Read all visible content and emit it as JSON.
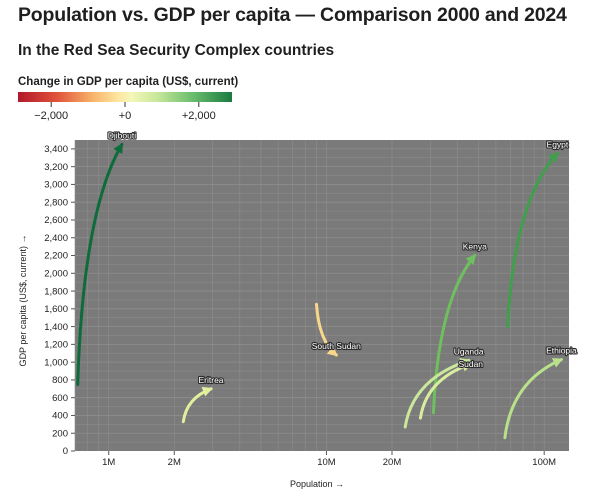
{
  "title": "Population vs. GDP per capita — Comparison 2000 and 2024",
  "subtitle": "In the Red Sea Security Complex countries",
  "colors": {
    "plot_background": "#7a7a7a",
    "gridline": "#8e8e8e",
    "scale_negative": "#b2182b",
    "scale_zero": "#fff4b0",
    "scale_positive": "#1a7a40"
  },
  "legend": {
    "title": "Change in GDP per capita (US$, current)",
    "ticks": [
      {
        "value": -2000,
        "label": "−2,000"
      },
      {
        "value": 0,
        "label": "+0"
      },
      {
        "value": 2000,
        "label": "+2,000"
      }
    ],
    "range": [
      -2900,
      2900
    ]
  },
  "chart_data": {
    "type": "scatter",
    "xlabel": "Population →",
    "ylabel": "GDP per capita (US$, current) →",
    "x_scale": "log",
    "xlim": [
      700000,
      130000000
    ],
    "ylim": [
      0,
      3500
    ],
    "grid": true,
    "xticks": [
      {
        "value": 1000000,
        "label": "1M"
      },
      {
        "value": 2000000,
        "label": "2M"
      },
      {
        "value": 10000000,
        "label": "10M"
      },
      {
        "value": 20000000,
        "label": "20M"
      },
      {
        "value": 100000000,
        "label": "100M"
      }
    ],
    "yticks": [
      0,
      200,
      400,
      600,
      800,
      1000,
      1200,
      1400,
      1600,
      1800,
      2000,
      2200,
      2400,
      2600,
      2800,
      3000,
      3200,
      3400
    ],
    "years": [
      "2000",
      "2024"
    ],
    "series": [
      {
        "name": "Djibouti",
        "color": "#0e6b3a",
        "x": [
          720000,
          1150000
        ],
        "y": [
          750,
          3450
        ]
      },
      {
        "name": "Egypt",
        "color": "#3f9f4b",
        "x": [
          68000000,
          115000000
        ],
        "y": [
          1400,
          3350
        ]
      },
      {
        "name": "Kenya",
        "color": "#6fbf5f",
        "x": [
          31000000,
          48000000
        ],
        "y": [
          430,
          2200
        ]
      },
      {
        "name": "South Sudan",
        "color": "#f7d88a",
        "x": [
          9000000,
          11100000
        ],
        "y": [
          1650,
          1080
        ]
      },
      {
        "name": "Uganda",
        "color": "#cbe79b",
        "x": [
          23000000,
          45000000
        ],
        "y": [
          270,
          1020
        ]
      },
      {
        "name": "Sudan",
        "color": "#d9ed9f",
        "x": [
          27000000,
          46000000
        ],
        "y": [
          370,
          980
        ]
      },
      {
        "name": "Ethiopia",
        "color": "#b9e08a",
        "x": [
          66000000,
          120000000
        ],
        "y": [
          150,
          1030
        ]
      },
      {
        "name": "Eritrea",
        "color": "#e3ef9e",
        "x": [
          2200000,
          2950000
        ],
        "y": [
          330,
          700
        ]
      }
    ]
  }
}
